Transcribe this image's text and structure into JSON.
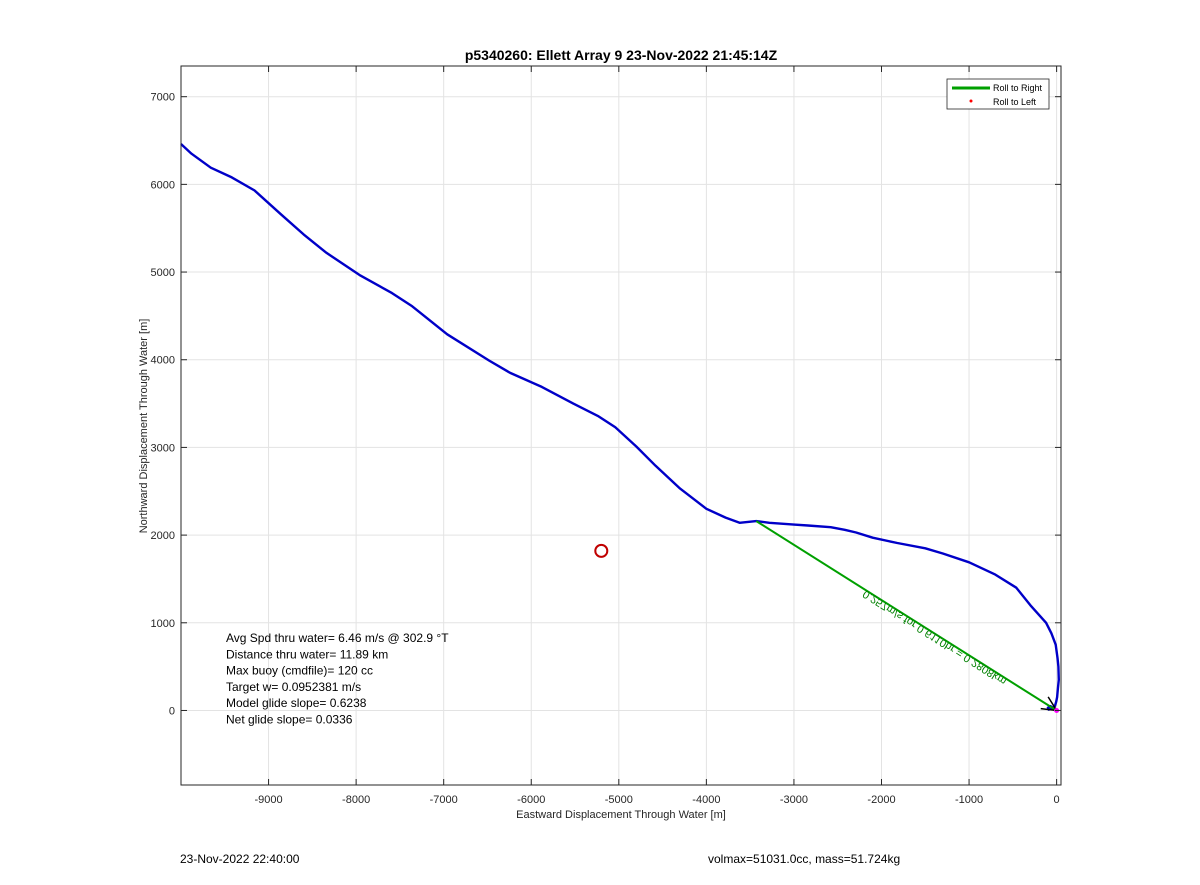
{
  "chart_data": {
    "type": "line",
    "title": "p5340260: Ellett Array 9 23-Nov-2022 21:45:14Z",
    "xlabel": "Eastward Displacement Through Water [m]",
    "ylabel": "Northward Displacement Through Water [m]",
    "xlim": [
      -10000,
      50
    ],
    "ylim": [
      -850,
      7350
    ],
    "xticks": [
      -9000,
      -8000,
      -7000,
      -6000,
      -5000,
      -4000,
      -3000,
      -2000,
      -1000,
      0
    ],
    "yticks": [
      0,
      1000,
      2000,
      3000,
      4000,
      5000,
      6000,
      7000
    ],
    "grid": true,
    "legend_position": "top-right",
    "legend": [
      {
        "label": "Roll to Right",
        "color": "#00a000",
        "marker": "line"
      },
      {
        "label": "Roll to Left",
        "color": "#ff0000",
        "marker": "dot"
      }
    ],
    "series": [
      {
        "color": "#0000c8",
        "x": [
          -10000,
          -9880,
          -9660,
          -9420,
          -9160,
          -8860,
          -8600,
          -8340,
          -7950,
          -7590,
          -7360,
          -6960,
          -6480,
          -6240,
          -6060,
          -5880,
          -5520,
          -5240,
          -5040,
          -4800,
          -4580,
          -4300,
          -4000,
          -3780,
          -3620,
          -3430,
          -3280,
          -3000,
          -2840,
          -2580,
          -2420,
          -2290,
          -2100,
          -1820,
          -1500,
          -1300,
          -1000,
          -700,
          -460,
          -300,
          -120,
          -60,
          -10,
          10,
          20,
          25,
          15,
          5,
          -5,
          -20,
          -50,
          -90,
          -100,
          -70,
          -40,
          -20
        ],
        "y": [
          6460,
          6350,
          6190,
          6080,
          5930,
          5660,
          5430,
          5220,
          4960,
          4760,
          4610,
          4290,
          3990,
          3850,
          3770,
          3690,
          3500,
          3360,
          3230,
          3010,
          2790,
          2530,
          2300,
          2200,
          2140,
          2160,
          2140,
          2120,
          2110,
          2090,
          2060,
          2030,
          1970,
          1910,
          1850,
          1790,
          1690,
          1550,
          1400,
          1200,
          1000,
          880,
          750,
          600,
          500,
          350,
          250,
          150,
          100,
          50,
          20,
          10,
          30,
          50,
          30,
          0
        ]
      },
      {
        "color": "#00a000",
        "x": [
          -3430,
          0
        ],
        "y": [
          2160,
          0
        ]
      }
    ],
    "annotations": [
      {
        "type": "circle",
        "x": -5200,
        "y": 1820,
        "color": "#c00000"
      },
      {
        "type": "rotated-text",
        "text": "0.257m/s for 0.6110hr = 0.2808km",
        "color": "#008000"
      }
    ],
    "info": [
      "Avg Spd thru water=  6.46 m/s @ 302.9 °T",
      "Distance thru water= 11.89 km",
      "Max buoy (cmdfile)= 120 cc",
      "Target w= 0.0952381 m/s",
      "Model glide slope= 0.6238",
      "Net glide slope= 0.0336"
    ]
  },
  "footer": {
    "left": "23-Nov-2022 22:40:00",
    "right": "volmax=51031.0cc, mass=51.724kg"
  }
}
